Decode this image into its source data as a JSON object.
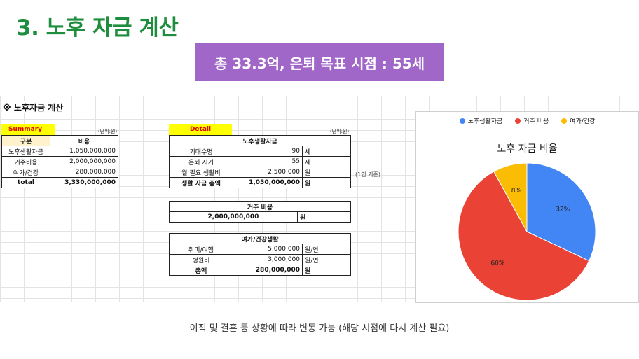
{
  "header": {
    "title": "3. 노후 자금 계산",
    "banner": "총 33.3억, 은퇴 목표 시점  : 55세"
  },
  "sheet": {
    "title": "※ 노후자금 계산",
    "summary": {
      "tag": "Summary",
      "unit": "(단위:원)",
      "headers": [
        "구분",
        "비용"
      ],
      "rows": [
        {
          "label": "노후생활자금",
          "value": "1,050,000,000"
        },
        {
          "label": "거주비용",
          "value": "2,000,000,000"
        },
        {
          "label": "여가/건강",
          "value": "280,000,000"
        },
        {
          "label": "total",
          "value": "3,330,000,000"
        }
      ]
    },
    "detail": {
      "tag": "Detail",
      "unit": "(단위:원)",
      "living": {
        "title": "노후생활자금",
        "rows": [
          {
            "label": "기대수명",
            "value": "90",
            "unit": "세"
          },
          {
            "label": "은퇴 시기",
            "value": "55",
            "unit": "세"
          },
          {
            "label": "월 필요 생활비",
            "value": "2,500,000",
            "unit": "원"
          },
          {
            "label": "생활 자금 총액",
            "value": "1,050,000,000",
            "unit": "원"
          }
        ],
        "note": "(1인 기준)"
      },
      "housing": {
        "title": "거주 비용",
        "value": "2,000,000,000",
        "unit": "원"
      },
      "leisure": {
        "title": "여가/건강생활",
        "rows": [
          {
            "label": "취미/여행",
            "value": "5,000,000",
            "unit": "원/연"
          },
          {
            "label": "병원비",
            "value": "3,000,000",
            "unit": "원/연"
          },
          {
            "label": "총액",
            "value": "280,000,000",
            "unit": "원"
          }
        ]
      }
    }
  },
  "chart_data": {
    "type": "pie",
    "title": "노후 자금 비율",
    "categories": [
      "노후생활자금",
      "거주 비용",
      "여가/건강"
    ],
    "values": [
      32,
      60,
      8
    ],
    "labels": [
      "32%",
      "60%",
      "8%"
    ],
    "colors": [
      "#4285f4",
      "#ea4335",
      "#fbbc04"
    ],
    "legend": "top"
  },
  "footer": "이직 및 결혼 등 상황에 따라 변동 가능 (해당 시점에 다시 계산 필요)"
}
